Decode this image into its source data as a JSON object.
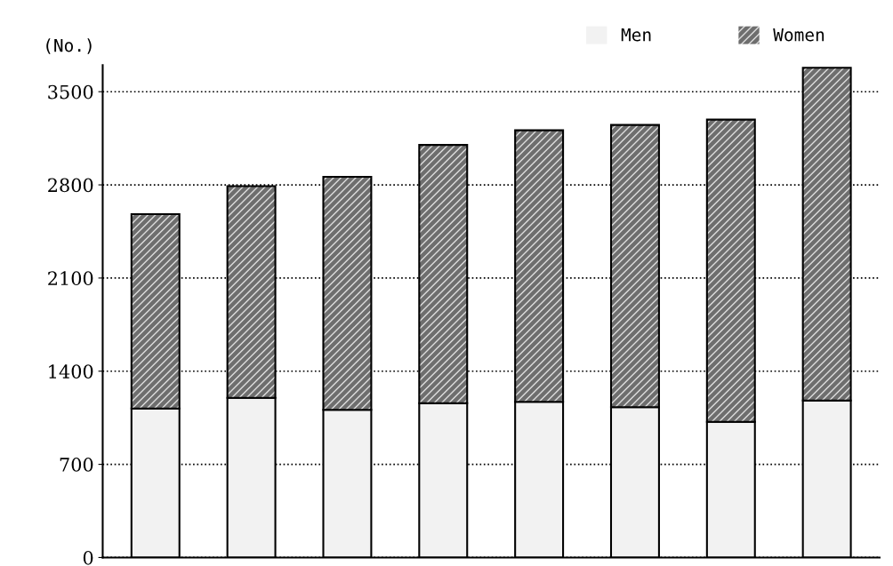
{
  "chart_data": {
    "type": "bar",
    "stacked": true,
    "ylabel": "(No.)",
    "categories": [
      null,
      null,
      null,
      null,
      null,
      null,
      null,
      null
    ],
    "series": [
      {
        "name": "Men",
        "color": "#f2f2f2",
        "values": [
          1120,
          1200,
          1110,
          1160,
          1170,
          1130,
          1020,
          1180
        ]
      },
      {
        "name": "Women",
        "color": "#6e6e6e",
        "values": [
          1460,
          1590,
          1750,
          1940,
          2040,
          2120,
          2270,
          2500
        ]
      }
    ],
    "ylim": [
      0,
      3700
    ],
    "yticks": [
      0,
      700,
      1400,
      2100,
      2800,
      3500
    ],
    "grid": "y",
    "legend": "top right"
  }
}
